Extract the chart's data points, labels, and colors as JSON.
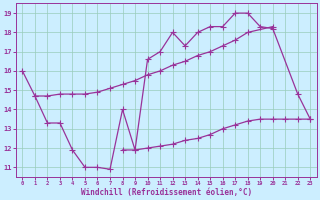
{
  "xlabel": "Windchill (Refroidissement éolien,°C)",
  "bg_color": "#cceeff",
  "line_color": "#993399",
  "grid_color": "#99ccbb",
  "x_ticks": [
    0,
    1,
    2,
    3,
    4,
    5,
    6,
    7,
    8,
    9,
    10,
    11,
    12,
    13,
    14,
    15,
    16,
    17,
    18,
    19,
    20,
    21,
    22,
    23
  ],
  "y_ticks": [
    11,
    12,
    13,
    14,
    15,
    16,
    17,
    18,
    19
  ],
  "xlim": [
    -0.5,
    23.5
  ],
  "ylim": [
    10.5,
    19.5
  ],
  "curve1_x": [
    0,
    1,
    2,
    3,
    4,
    5,
    6,
    7,
    8,
    9,
    10,
    11,
    12,
    13,
    14,
    15,
    16,
    17,
    18,
    19,
    20,
    22,
    23
  ],
  "curve1_y": [
    16.0,
    14.7,
    13.3,
    13.3,
    11.9,
    11.0,
    11.0,
    10.9,
    14.0,
    11.9,
    16.6,
    17.0,
    18.0,
    17.3,
    18.0,
    18.3,
    18.3,
    19.0,
    19.0,
    18.3,
    18.2,
    14.8,
    13.5
  ],
  "curve2_x": [
    1,
    2,
    3,
    4,
    5,
    6,
    7,
    8,
    9,
    10,
    11,
    12,
    13,
    14,
    15,
    16,
    17,
    18,
    20
  ],
  "curve2_y": [
    14.7,
    14.7,
    14.8,
    14.8,
    14.8,
    14.9,
    15.1,
    15.3,
    15.5,
    15.8,
    16.0,
    16.3,
    16.5,
    16.8,
    17.0,
    17.3,
    17.6,
    18.0,
    18.3
  ],
  "curve3_x": [
    8,
    9,
    10,
    11,
    12,
    13,
    14,
    15,
    16,
    17,
    18,
    19,
    20,
    21,
    22,
    23
  ],
  "curve3_y": [
    11.9,
    11.9,
    12.0,
    12.1,
    12.2,
    12.4,
    12.5,
    12.7,
    13.0,
    13.2,
    13.4,
    13.5,
    13.5,
    13.5,
    13.5,
    13.5
  ]
}
